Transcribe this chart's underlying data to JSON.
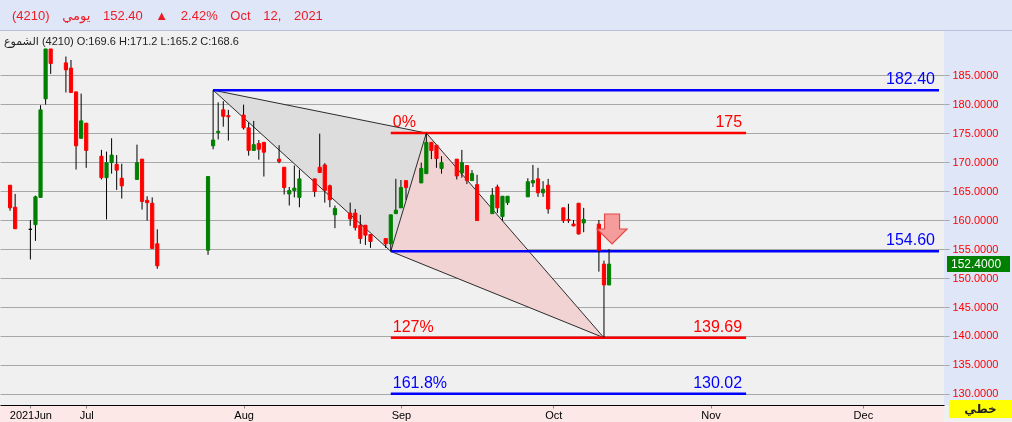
{
  "chart_data": {
    "type": "candlestick",
    "title": "(4210) يومي 152.40 ▲ 2.42% Oct 12, 2021",
    "subtitle": "الشموع (4210) O:169.6 H:171.2 L:165.2 C:168.6",
    "x": [
      "2021-06-16",
      "2021-06-17",
      "2021-06-20",
      "2021-06-21",
      "2021-06-22",
      "2021-06-23",
      "2021-06-24",
      "2021-06-27",
      "2021-06-28",
      "2021-06-29",
      "2021-06-30",
      "2021-07-01",
      "2021-07-04",
      "2021-07-05",
      "2021-07-06",
      "2021-07-07",
      "2021-07-08",
      "2021-07-11",
      "2021-07-12",
      "2021-07-13",
      "2021-07-14",
      "2021-07-15",
      "2021-07-25",
      "2021-07-26",
      "2021-07-27",
      "2021-07-28",
      "2021-07-29",
      "2021-08-01",
      "2021-08-02",
      "2021-08-03",
      "2021-08-04",
      "2021-08-05",
      "2021-08-08",
      "2021-08-09",
      "2021-08-10",
      "2021-08-11",
      "2021-08-12",
      "2021-08-15",
      "2021-08-16",
      "2021-08-17",
      "2021-08-18",
      "2021-08-19",
      "2021-08-22",
      "2021-08-23",
      "2021-08-24",
      "2021-08-25",
      "2021-08-26",
      "2021-08-29",
      "2021-08-30",
      "2021-08-31",
      "2021-09-01",
      "2021-09-02",
      "2021-09-05",
      "2021-09-06",
      "2021-09-07",
      "2021-09-08",
      "2021-09-09",
      "2021-09-12",
      "2021-09-13",
      "2021-09-14",
      "2021-09-15",
      "2021-09-16",
      "2021-09-19",
      "2021-09-20",
      "2021-09-21",
      "2021-09-22",
      "2021-09-26",
      "2021-09-27",
      "2021-09-28",
      "2021-09-29",
      "2021-09-30",
      "2021-10-03",
      "2021-10-04",
      "2021-10-05",
      "2021-10-06",
      "2021-10-07",
      "2021-10-10",
      "2021-10-11",
      "2021-10-12"
    ],
    "ohlc": [
      [
        166.0,
        166.0,
        161.6,
        162.1
      ],
      [
        162.2,
        164.5,
        158.5,
        158.5
      ],
      [
        158.4,
        160.0,
        153.2,
        158.4
      ],
      [
        159.2,
        164.2,
        156.4,
        164.0
      ],
      [
        163.9,
        179.8,
        163.9,
        179.0
      ],
      [
        180.9,
        189.5,
        179.9,
        189.5
      ],
      [
        189.5,
        189.5,
        185.2,
        187.0
      ],
      [
        187.1,
        188.2,
        182.0,
        185.9
      ],
      [
        186.2,
        187.6,
        182.0,
        182.0
      ],
      [
        182.1,
        182.1,
        168.7,
        172.8
      ],
      [
        174.1,
        181.8,
        174.1,
        177.1
      ],
      [
        176.7,
        176.7,
        169.0,
        172.0
      ],
      [
        171.0,
        172.1,
        167.0,
        167.3
      ],
      [
        167.3,
        171.8,
        160.1,
        169.9
      ],
      [
        169.9,
        174.1,
        168.0,
        171.2
      ],
      [
        169.6,
        171.2,
        165.2,
        168.6
      ],
      [
        167.2,
        169.7,
        163.7,
        165.9
      ],
      [
        167.0,
        173.0,
        167.0,
        169.9
      ],
      [
        170.5,
        170.5,
        161.8,
        163.2
      ],
      [
        163.4,
        164.1,
        159.9,
        163.0
      ],
      [
        162.9,
        163.9,
        155.1,
        155.1
      ],
      [
        155.9,
        158.4,
        151.6,
        152.1
      ],
      [
        154.8,
        167.5,
        154.0,
        167.5
      ],
      [
        172.8,
        182.4,
        172.2,
        173.8
      ],
      [
        175.1,
        180.3,
        173.9,
        175.3
      ],
      [
        179.0,
        180.5,
        176.1,
        177.9
      ],
      [
        178.0,
        179.0,
        173.7,
        177.8
      ],
      [
        178.1,
        179.9,
        175.6,
        175.9
      ],
      [
        175.9,
        176.8,
        171.1,
        172.0
      ],
      [
        172.0,
        177.1,
        172.0,
        173.0
      ],
      [
        173.2,
        173.8,
        170.4,
        172.2
      ],
      [
        173.4,
        173.4,
        167.5,
        171.7
      ],
      [
        170.5,
        172.9,
        169.8,
        170.1
      ],
      [
        169.1,
        169.1,
        164.4,
        165.6
      ],
      [
        164.5,
        165.7,
        162.5,
        165.1
      ],
      [
        165.1,
        169.4,
        163.9,
        165.5
      ],
      [
        163.9,
        168.7,
        162.2,
        167.1
      ],
      [
        167.1,
        167.1,
        164.0,
        164.9
      ],
      [
        169.1,
        174.9,
        168.2,
        168.2
      ],
      [
        169.5,
        169.8,
        163.0,
        165.1
      ],
      [
        165.9,
        166.1,
        162.2,
        163.5
      ],
      [
        160.9,
        162.5,
        158.6,
        162.0
      ],
      [
        161.2,
        163.0,
        159.0,
        160.2
      ],
      [
        161.2,
        161.9,
        158.2,
        158.7
      ],
      [
        159.1,
        160.9,
        155.9,
        156.8
      ],
      [
        159.1,
        159.1,
        155.7,
        157.4
      ],
      [
        157.5,
        157.5,
        155.2,
        156.3
      ],
      [
        156.8,
        156.8,
        155.2,
        155.9
      ],
      [
        155.9,
        160.9,
        154.6,
        160.9
      ],
      [
        161.1,
        167.1,
        161.1,
        161.7
      ],
      [
        162.1,
        166.9,
        162.1,
        165.6
      ],
      [
        166.8,
        166.8,
        163.5,
        165.6
      ],
      [
        166.4,
        169.9,
        166.4,
        168.9
      ],
      [
        168.0,
        175.0,
        168.0,
        173.4
      ],
      [
        173.4,
        173.4,
        170.5,
        172.0
      ],
      [
        172.9,
        172.9,
        169.0,
        170.6
      ],
      [
        168.9,
        171.0,
        168.0,
        169.9
      ],
      [
        170.5,
        170.5,
        167.0,
        167.6
      ],
      [
        168.1,
        172.1,
        167.3,
        169.9
      ],
      [
        169.4,
        169.4,
        166.2,
        166.8
      ],
      [
        166.8,
        168.6,
        166.8,
        168.0
      ],
      [
        166.1,
        167.8,
        159.9,
        159.9
      ],
      [
        161.1,
        165.5,
        161.1,
        164.3
      ],
      [
        165.7,
        166.1,
        161.2,
        162.1
      ],
      [
        160.6,
        164.1,
        159.9,
        164.1
      ],
      [
        163.0,
        164.1,
        162.6,
        164.1
      ],
      [
        164.0,
        167.2,
        164.0,
        166.6
      ],
      [
        166.4,
        169.5,
        165.7,
        166.8
      ],
      [
        167.1,
        169.0,
        164.0,
        164.7
      ],
      [
        164.7,
        166.7,
        164.0,
        165.3
      ],
      [
        166.0,
        167.1,
        161.1,
        161.9
      ],
      [
        162.1,
        162.1,
        159.5,
        159.9
      ],
      [
        160.1,
        162.8,
        159.5,
        159.9
      ],
      [
        159.3,
        160.0,
        158.9,
        159.0
      ],
      [
        162.9,
        162.9,
        157.5,
        157.6
      ],
      [
        159.5,
        162.1,
        157.9,
        160.1
      ],
      [
        159.3,
        160.0,
        151.1,
        154.8
      ],
      [
        152.4,
        153.0,
        139.7,
        148.8
      ],
      [
        148.8,
        155.0,
        148.8,
        152.4
      ]
    ],
    "colors": [
      "#ff0000",
      "#ff0000",
      "#000000",
      "#008000",
      "#008000",
      "#008000",
      "#ff0000",
      "#ff0000",
      "#ff0000",
      "#ff0000",
      "#008000",
      "#ff0000",
      "#ff0000",
      "#008000",
      "#008000",
      "#ff0000",
      "#ff0000",
      "#008000",
      "#ff0000",
      "#ff0000",
      "#ff0000",
      "#ff0000",
      "#008000",
      "#008000",
      "#008000",
      "#ff0000",
      "#ff0000",
      "#ff0000",
      "#ff0000",
      "#008000",
      "#ff0000",
      "#ff0000",
      "#ff0000",
      "#ff0000",
      "#008000",
      "#008000",
      "#008000",
      "#ff0000",
      "#ff0000",
      "#ff0000",
      "#ff0000",
      "#008000",
      "#ff0000",
      "#ff0000",
      "#ff0000",
      "#ff0000",
      "#ff0000",
      "#ff0000",
      "#008000",
      "#008000",
      "#008000",
      "#ff0000",
      "#008000",
      "#008000",
      "#ff0000",
      "#ff0000",
      "#008000",
      "#ff0000",
      "#008000",
      "#ff0000",
      "#008000",
      "#ff0000",
      "#008000",
      "#ff0000",
      "#008000",
      "#008000",
      "#008000",
      "#008000",
      "#ff0000",
      "#008000",
      "#ff0000",
      "#ff0000",
      "#ff0000",
      "#ff0000",
      "#ff0000",
      "#008000",
      "#ff0000",
      "#ff0000",
      "#008000"
    ],
    "xlim": [
      "2021-06-15",
      "2021-12-16"
    ],
    "xticks": [
      {
        "value": "2021-06-20",
        "label": "2021Jun"
      },
      {
        "value": "2021-07-01",
        "label": "Jul"
      },
      {
        "value": "2021-08-01",
        "label": "Aug"
      },
      {
        "value": "2021-09-01",
        "label": "Sep"
      },
      {
        "value": "2021-10-01",
        "label": "Oct"
      },
      {
        "value": "2021-11-01",
        "label": "Nov"
      },
      {
        "value": "2021-12-01",
        "label": "Dec"
      }
    ],
    "ylim": [
      128.1,
      192.6
    ],
    "yticks": [
      {
        "value": 130,
        "label": "130.0000"
      },
      {
        "value": 135,
        "label": "135.0000"
      },
      {
        "value": 140,
        "label": "140.0000"
      },
      {
        "value": 145,
        "label": "145.0000"
      },
      {
        "value": 150,
        "label": "150.0000"
      },
      {
        "value": 155,
        "label": "155.0000"
      },
      {
        "value": 160,
        "label": "160.0000"
      },
      {
        "value": 165,
        "label": "165.0000"
      },
      {
        "value": 170,
        "label": "170.0000"
      },
      {
        "value": 175,
        "label": "175.0000"
      },
      {
        "value": 180,
        "label": "180.0000"
      },
      {
        "value": 185,
        "label": "185.0000"
      }
    ],
    "grid": "y",
    "series": [
      {
        "type": "line",
        "color": "#dddddd",
        "x": [
          "2021-07-26",
          "2021-08-30",
          "2021-09-06"
        ],
        "values": [
          null,
          null,
          null
        ],
        "lower": [
          182.4,
          154.6,
          175
        ],
        "upper": [
          182.4,
          176.2,
          175
        ]
      },
      {
        "type": "line",
        "color": "#f2d3d3",
        "x": [
          "2021-08-30",
          "2021-09-06",
          "2021-10-11"
        ],
        "values": [
          null,
          null,
          null
        ],
        "lower": [
          154.6,
          152.1,
          139.69
        ],
        "upper": [
          154.6,
          175,
          139.69
        ]
      },
      {
        "type": "line",
        "color": "#2b2b2b",
        "x": [
          "2021-07-26",
          "2021-08-30",
          "2021-09-06",
          "2021-10-11"
        ],
        "values": [
          182.4,
          154.6,
          175,
          139.69
        ]
      },
      {
        "type": "line",
        "color": "#2b2b2b",
        "x": [
          "2021-07-26",
          "2021-09-06"
        ],
        "values": [
          182.4,
          175
        ]
      },
      {
        "type": "line",
        "color": "#2b2b2b",
        "x": [
          "2021-08-30",
          "2021-10-11"
        ],
        "values": [
          154.6,
          139.69
        ]
      },
      {
        "type": "line",
        "color": "#0000ff",
        "x": [
          "2021-07-26",
          "2021-12-16"
        ],
        "values": [
          182.4,
          182.4
        ],
        "value_labels": [
          null,
          "182.40"
        ]
      },
      {
        "type": "line",
        "color": "#0000ff",
        "x": [
          "2021-08-30",
          "2021-12-16"
        ],
        "values": [
          154.6,
          154.6
        ],
        "value_labels": [
          null,
          "154.60"
        ]
      },
      {
        "type": "line",
        "color": "#ff0000",
        "x": [
          "2021-08-30",
          "2021-11-08"
        ],
        "values": [
          175,
          175
        ],
        "value_labels": [
          null,
          "175"
        ]
      },
      {
        "type": "line",
        "color": "#ff0000",
        "x": [
          "2021-08-30",
          "2021-11-08"
        ],
        "values": [
          139.69,
          139.69
        ],
        "value_labels": [
          null,
          "139.69"
        ]
      },
      {
        "type": "line",
        "color": "#0000ff",
        "x": [
          "2021-08-30",
          "2021-11-08"
        ],
        "values": [
          130.02,
          130.02
        ],
        "value_labels": [
          null,
          "130.02"
        ]
      }
    ],
    "annotations": [
      {
        "text": "0%",
        "x": "2021-08-30",
        "y": 175
      },
      {
        "text": "127%",
        "x": "2021-08-30",
        "y": 139.69
      },
      {
        "text": "161.8%",
        "x": "2021-08-30",
        "y": 130.02
      },
      "152.4000",
      "خطي"
    ]
  }
}
